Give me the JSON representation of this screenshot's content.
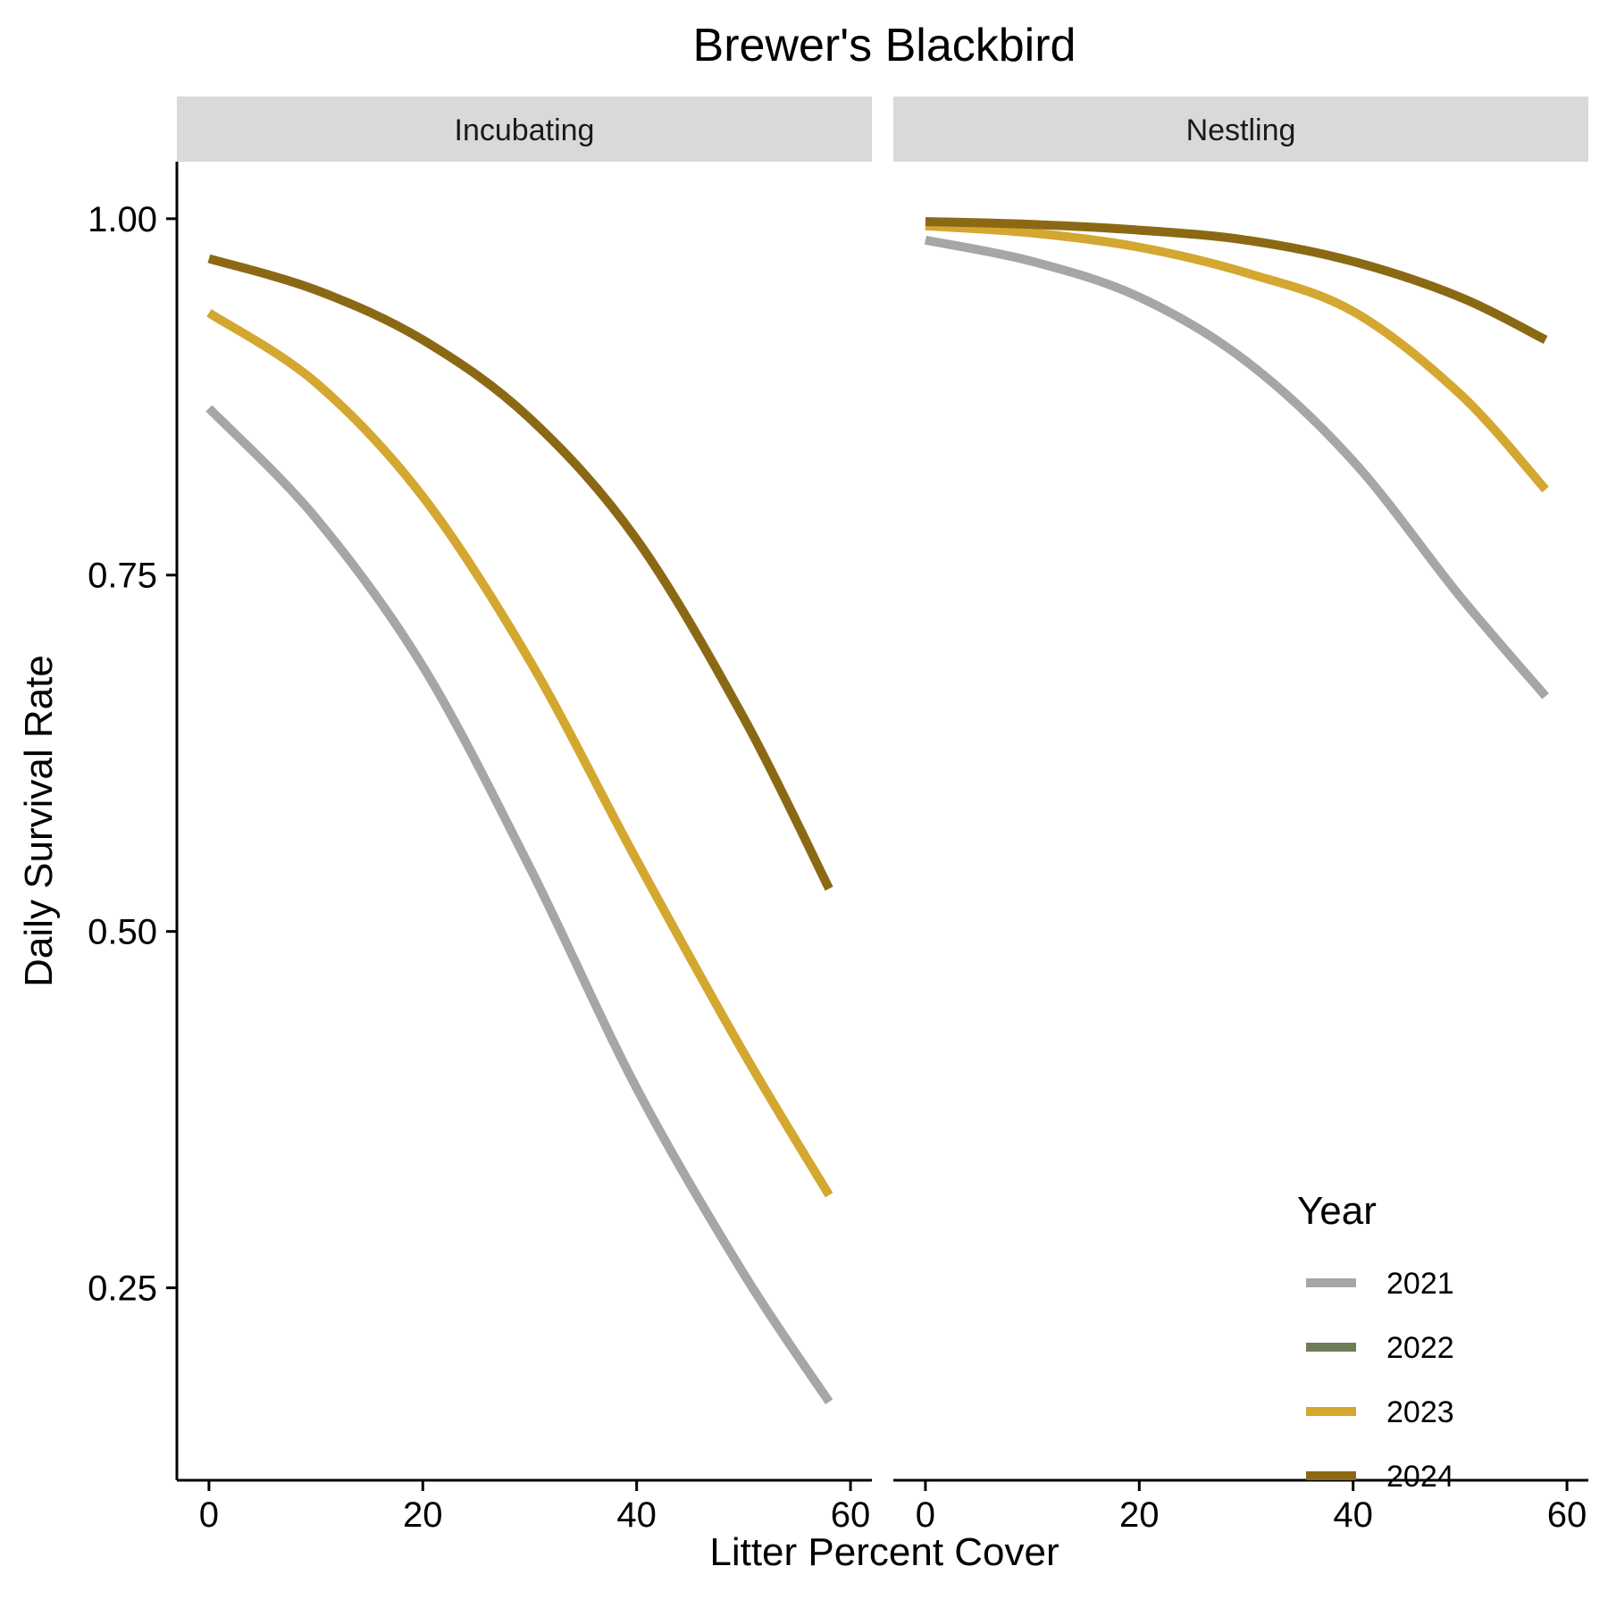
{
  "chart_data": {
    "type": "line",
    "title": "Brewer's Blackbird",
    "xlabel": "Litter Percent Cover",
    "ylabel": "Daily Survival Rate",
    "xlim": [
      -3,
      62
    ],
    "ylim": [
      0.115,
      1.04
    ],
    "x_ticks": [
      0,
      20,
      40,
      60
    ],
    "x_tick_labels": [
      "0",
      "20",
      "40",
      "60"
    ],
    "y_ticks": [
      0.25,
      0.5,
      0.75,
      1.0
    ],
    "y_tick_labels": [
      "0.25",
      "0.50",
      "0.75",
      "1.00"
    ],
    "grid": false,
    "legend": {
      "title": "Year",
      "position": "bottom-right (inside)",
      "entries": [
        {
          "label": "2021",
          "color": "#a6a6a4"
        },
        {
          "label": "2022",
          "color": "#6f7d57"
        },
        {
          "label": "2023",
          "color": "#d4a730"
        },
        {
          "label": "2024",
          "color": "#8b6914"
        }
      ]
    },
    "panels": [
      {
        "strip_label": "Incubating",
        "x": [
          0,
          10,
          20,
          30,
          40,
          50,
          58
        ],
        "series": [
          {
            "name": "2021",
            "color": "#a6a6a4",
            "values": [
              0.867,
              0.79,
              0.686,
              0.545,
              0.39,
              0.26,
              0.17
            ]
          },
          {
            "name": "2023",
            "color": "#d4a730",
            "values": [
              0.934,
              0.885,
              0.805,
              0.69,
              0.55,
              0.415,
              0.315
            ]
          },
          {
            "name": "2024",
            "color": "#8b6914",
            "values": [
              0.972,
              0.95,
              0.915,
              0.86,
              0.775,
              0.65,
              0.53
            ]
          }
        ]
      },
      {
        "strip_label": "Nestling",
        "x": [
          0,
          10,
          20,
          30,
          40,
          50,
          58
        ],
        "series": [
          {
            "name": "2021",
            "color": "#a6a6a4",
            "values": [
              0.985,
              0.97,
              0.945,
              0.9,
              0.83,
              0.735,
              0.665
            ]
          },
          {
            "name": "2023",
            "color": "#d4a730",
            "values": [
              0.995,
              0.99,
              0.98,
              0.962,
              0.935,
              0.877,
              0.81
            ]
          },
          {
            "name": "2024",
            "color": "#8b6914",
            "values": [
              0.998,
              0.996,
              0.992,
              0.985,
              0.97,
              0.945,
              0.915
            ]
          }
        ]
      }
    ]
  }
}
